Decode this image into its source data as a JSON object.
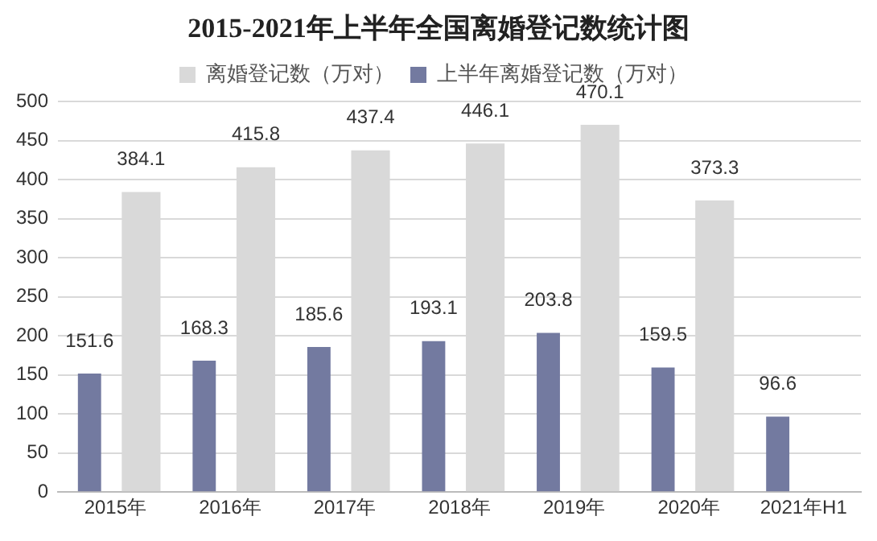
{
  "chart_data": {
    "type": "bar",
    "title": "2015-2021年上半年全国离婚登记数统计图",
    "categories": [
      "2015年",
      "2016年",
      "2017年",
      "2018年",
      "2019年",
      "2020年",
      "2021年H1"
    ],
    "series": [
      {
        "name": "离婚登记数（万对）",
        "color": "#d9d9d9",
        "values": [
          384.1,
          415.8,
          437.4,
          446.1,
          470.1,
          373.3,
          null
        ]
      },
      {
        "name": "上半年离婚登记数（万对）",
        "color": "#737aa0",
        "values": [
          151.6,
          168.3,
          185.6,
          193.1,
          203.8,
          159.5,
          96.6
        ]
      }
    ],
    "ylim": [
      0,
      500
    ],
    "yticks": [
      0,
      50,
      100,
      150,
      200,
      250,
      300,
      350,
      400,
      450,
      500
    ],
    "grid": "y",
    "legend": "top",
    "data_labels": true
  }
}
